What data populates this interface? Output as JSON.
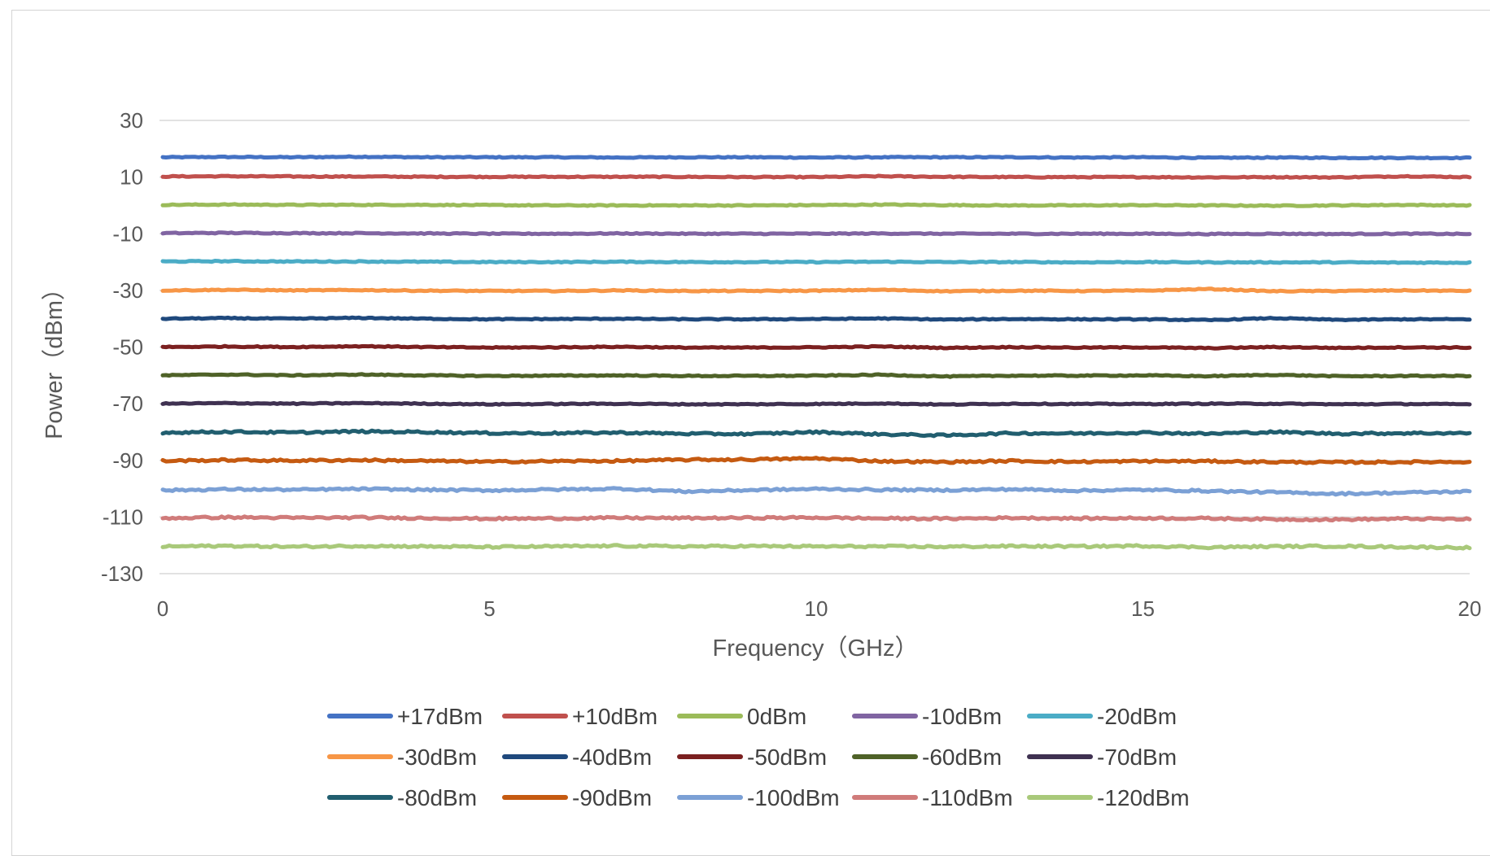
{
  "chart_data": {
    "type": "line",
    "title": "",
    "xlabel": "Frequency（GHz）",
    "ylabel": "Power（dBm）",
    "xlim": [
      0,
      20
    ],
    "ylim": [
      -130,
      30
    ],
    "x_ticks": [
      0,
      5,
      10,
      15,
      20
    ],
    "y_ticks": [
      30,
      10,
      -10,
      -30,
      -50,
      -70,
      -90,
      -110,
      -130
    ],
    "x_tick_labels": [
      "0",
      "5",
      "10",
      "15",
      "20"
    ],
    "y_tick_labels": [
      "30",
      "10",
      "-10",
      "-30",
      "-50",
      "-70",
      "-90",
      "-110",
      "-130"
    ],
    "grid": "horizontal",
    "legend_position": "bottom",
    "x": [
      0,
      1,
      2,
      3,
      4,
      5,
      6,
      7,
      8,
      9,
      10,
      11,
      12,
      13,
      14,
      15,
      16,
      17,
      18,
      19,
      20
    ],
    "series": [
      {
        "name": "+17dBm",
        "color": "#4472C4",
        "values": [
          17.0,
          17.1,
          17.0,
          17.2,
          17.0,
          17.0,
          17.0,
          16.9,
          17.0,
          17.0,
          16.9,
          17.0,
          17.0,
          17.0,
          16.9,
          17.0,
          16.8,
          16.9,
          16.8,
          16.8,
          16.8
        ]
      },
      {
        "name": "+10dBm",
        "color": "#C0504D",
        "values": [
          10.2,
          10.3,
          10.2,
          10.2,
          10.1,
          10.1,
          10.1,
          10.1,
          10.1,
          10.0,
          10.0,
          10.3,
          10.1,
          10.0,
          10.0,
          10.0,
          9.9,
          10.0,
          9.9,
          10.3,
          10.0
        ]
      },
      {
        "name": "0dBm",
        "color": "#9BBB59",
        "values": [
          0.2,
          0.3,
          0.2,
          0.2,
          0.2,
          0.1,
          0.0,
          0.0,
          0.0,
          0.0,
          0.1,
          0.3,
          0.1,
          0.0,
          0.0,
          0.1,
          0.0,
          -0.1,
          0.0,
          0.2,
          0.0
        ]
      },
      {
        "name": "-10dBm",
        "color": "#8064A2",
        "values": [
          -9.8,
          -9.7,
          -9.8,
          -9.8,
          -9.9,
          -10.0,
          -10.0,
          -9.9,
          -10.0,
          -10.0,
          -10.0,
          -9.9,
          -10.0,
          -10.0,
          -10.0,
          -10.0,
          -10.1,
          -10.0,
          -10.1,
          -10.0,
          -10.1
        ]
      },
      {
        "name": "-20dBm",
        "color": "#4BACC6",
        "values": [
          -19.8,
          -19.7,
          -19.8,
          -19.8,
          -19.9,
          -20.0,
          -20.0,
          -19.9,
          -20.0,
          -20.0,
          -20.0,
          -19.9,
          -20.0,
          -20.0,
          -20.1,
          -20.0,
          -20.1,
          -20.1,
          -20.1,
          -20.2,
          -20.2
        ]
      },
      {
        "name": "-30dBm",
        "color": "#F79646",
        "values": [
          -30.0,
          -29.8,
          -30.0,
          -29.9,
          -30.1,
          -30.2,
          -30.2,
          -30.0,
          -30.2,
          -30.2,
          -30.1,
          -29.8,
          -30.3,
          -30.1,
          -30.2,
          -30.1,
          -29.5,
          -30.3,
          -30.2,
          -30.0,
          -30.2
        ]
      },
      {
        "name": "-40dBm",
        "color": "#1F497D",
        "values": [
          -40.0,
          -39.8,
          -40.0,
          -39.7,
          -40.0,
          -40.2,
          -40.1,
          -40.0,
          -40.2,
          -40.2,
          -40.1,
          -39.9,
          -40.3,
          -40.1,
          -40.2,
          -40.2,
          -40.5,
          -39.8,
          -40.4,
          -40.2,
          -40.2
        ]
      },
      {
        "name": "-50dBm",
        "color": "#7B2020",
        "values": [
          -50.0,
          -49.8,
          -50.0,
          -49.7,
          -50.0,
          -50.2,
          -50.1,
          -49.9,
          -50.2,
          -50.2,
          -50.1,
          -49.8,
          -50.3,
          -50.0,
          -50.2,
          -50.1,
          -50.4,
          -50.0,
          -50.3,
          -50.1,
          -50.2
        ]
      },
      {
        "name": "-60dBm",
        "color": "#4F6228",
        "values": [
          -60.0,
          -59.7,
          -60.0,
          -59.7,
          -60.0,
          -60.2,
          -60.1,
          -60.0,
          -60.2,
          -60.2,
          -60.1,
          -59.8,
          -60.4,
          -60.1,
          -60.1,
          -60.0,
          -60.3,
          -59.8,
          -60.3,
          -60.2,
          -60.2
        ]
      },
      {
        "name": "-70dBm",
        "color": "#3F3151",
        "values": [
          -70.0,
          -69.8,
          -70.0,
          -69.8,
          -70.0,
          -70.2,
          -70.1,
          -70.0,
          -70.2,
          -70.2,
          -70.1,
          -69.9,
          -70.3,
          -70.0,
          -70.1,
          -70.1,
          -70.0,
          -70.0,
          -70.2,
          -70.1,
          -70.2
        ]
      },
      {
        "name": "-80dBm",
        "color": "#215E6F",
        "values": [
          -80.2,
          -79.9,
          -80.2,
          -79.8,
          -80.0,
          -80.4,
          -80.4,
          -80.2,
          -80.6,
          -80.7,
          -80.0,
          -80.8,
          -81.2,
          -80.4,
          -80.5,
          -80.2,
          -80.6,
          -80.0,
          -80.6,
          -80.4,
          -80.4
        ]
      },
      {
        "name": "-90dBm",
        "color": "#C55A11",
        "values": [
          -90.2,
          -89.9,
          -90.1,
          -89.9,
          -90.2,
          -90.5,
          -90.3,
          -90.2,
          -89.8,
          -89.7,
          -89.3,
          -90.3,
          -90.6,
          -90.2,
          -90.5,
          -90.3,
          -90.3,
          -90.6,
          -90.7,
          -90.6,
          -90.5
        ]
      },
      {
        "name": "-100dBm",
        "color": "#7BA0D5",
        "values": [
          -100.6,
          -100.2,
          -100.4,
          -100.1,
          -100.4,
          -100.6,
          -100.3,
          -100.0,
          -101.0,
          -100.5,
          -100.1,
          -100.4,
          -100.5,
          -100.2,
          -100.7,
          -100.4,
          -100.8,
          -101.3,
          -101.8,
          -101.4,
          -101.0
        ]
      },
      {
        "name": "-110dBm",
        "color": "#D07B7A",
        "values": [
          -110.4,
          -110.1,
          -110.3,
          -110.2,
          -110.4,
          -110.6,
          -110.5,
          -110.3,
          -110.4,
          -110.3,
          -110.2,
          -110.5,
          -110.6,
          -110.3,
          -110.5,
          -110.4,
          -110.5,
          -110.8,
          -110.9,
          -110.6,
          -110.8
        ]
      },
      {
        "name": "-120dBm",
        "color": "#A9C97A",
        "values": [
          -120.4,
          -120.2,
          -120.5,
          -120.2,
          -120.4,
          -120.6,
          -120.4,
          -120.2,
          -120.4,
          -120.3,
          -120.4,
          -120.4,
          -120.5,
          -120.3,
          -120.4,
          -120.2,
          -120.7,
          -120.4,
          -120.3,
          -120.6,
          -120.8
        ]
      }
    ]
  }
}
